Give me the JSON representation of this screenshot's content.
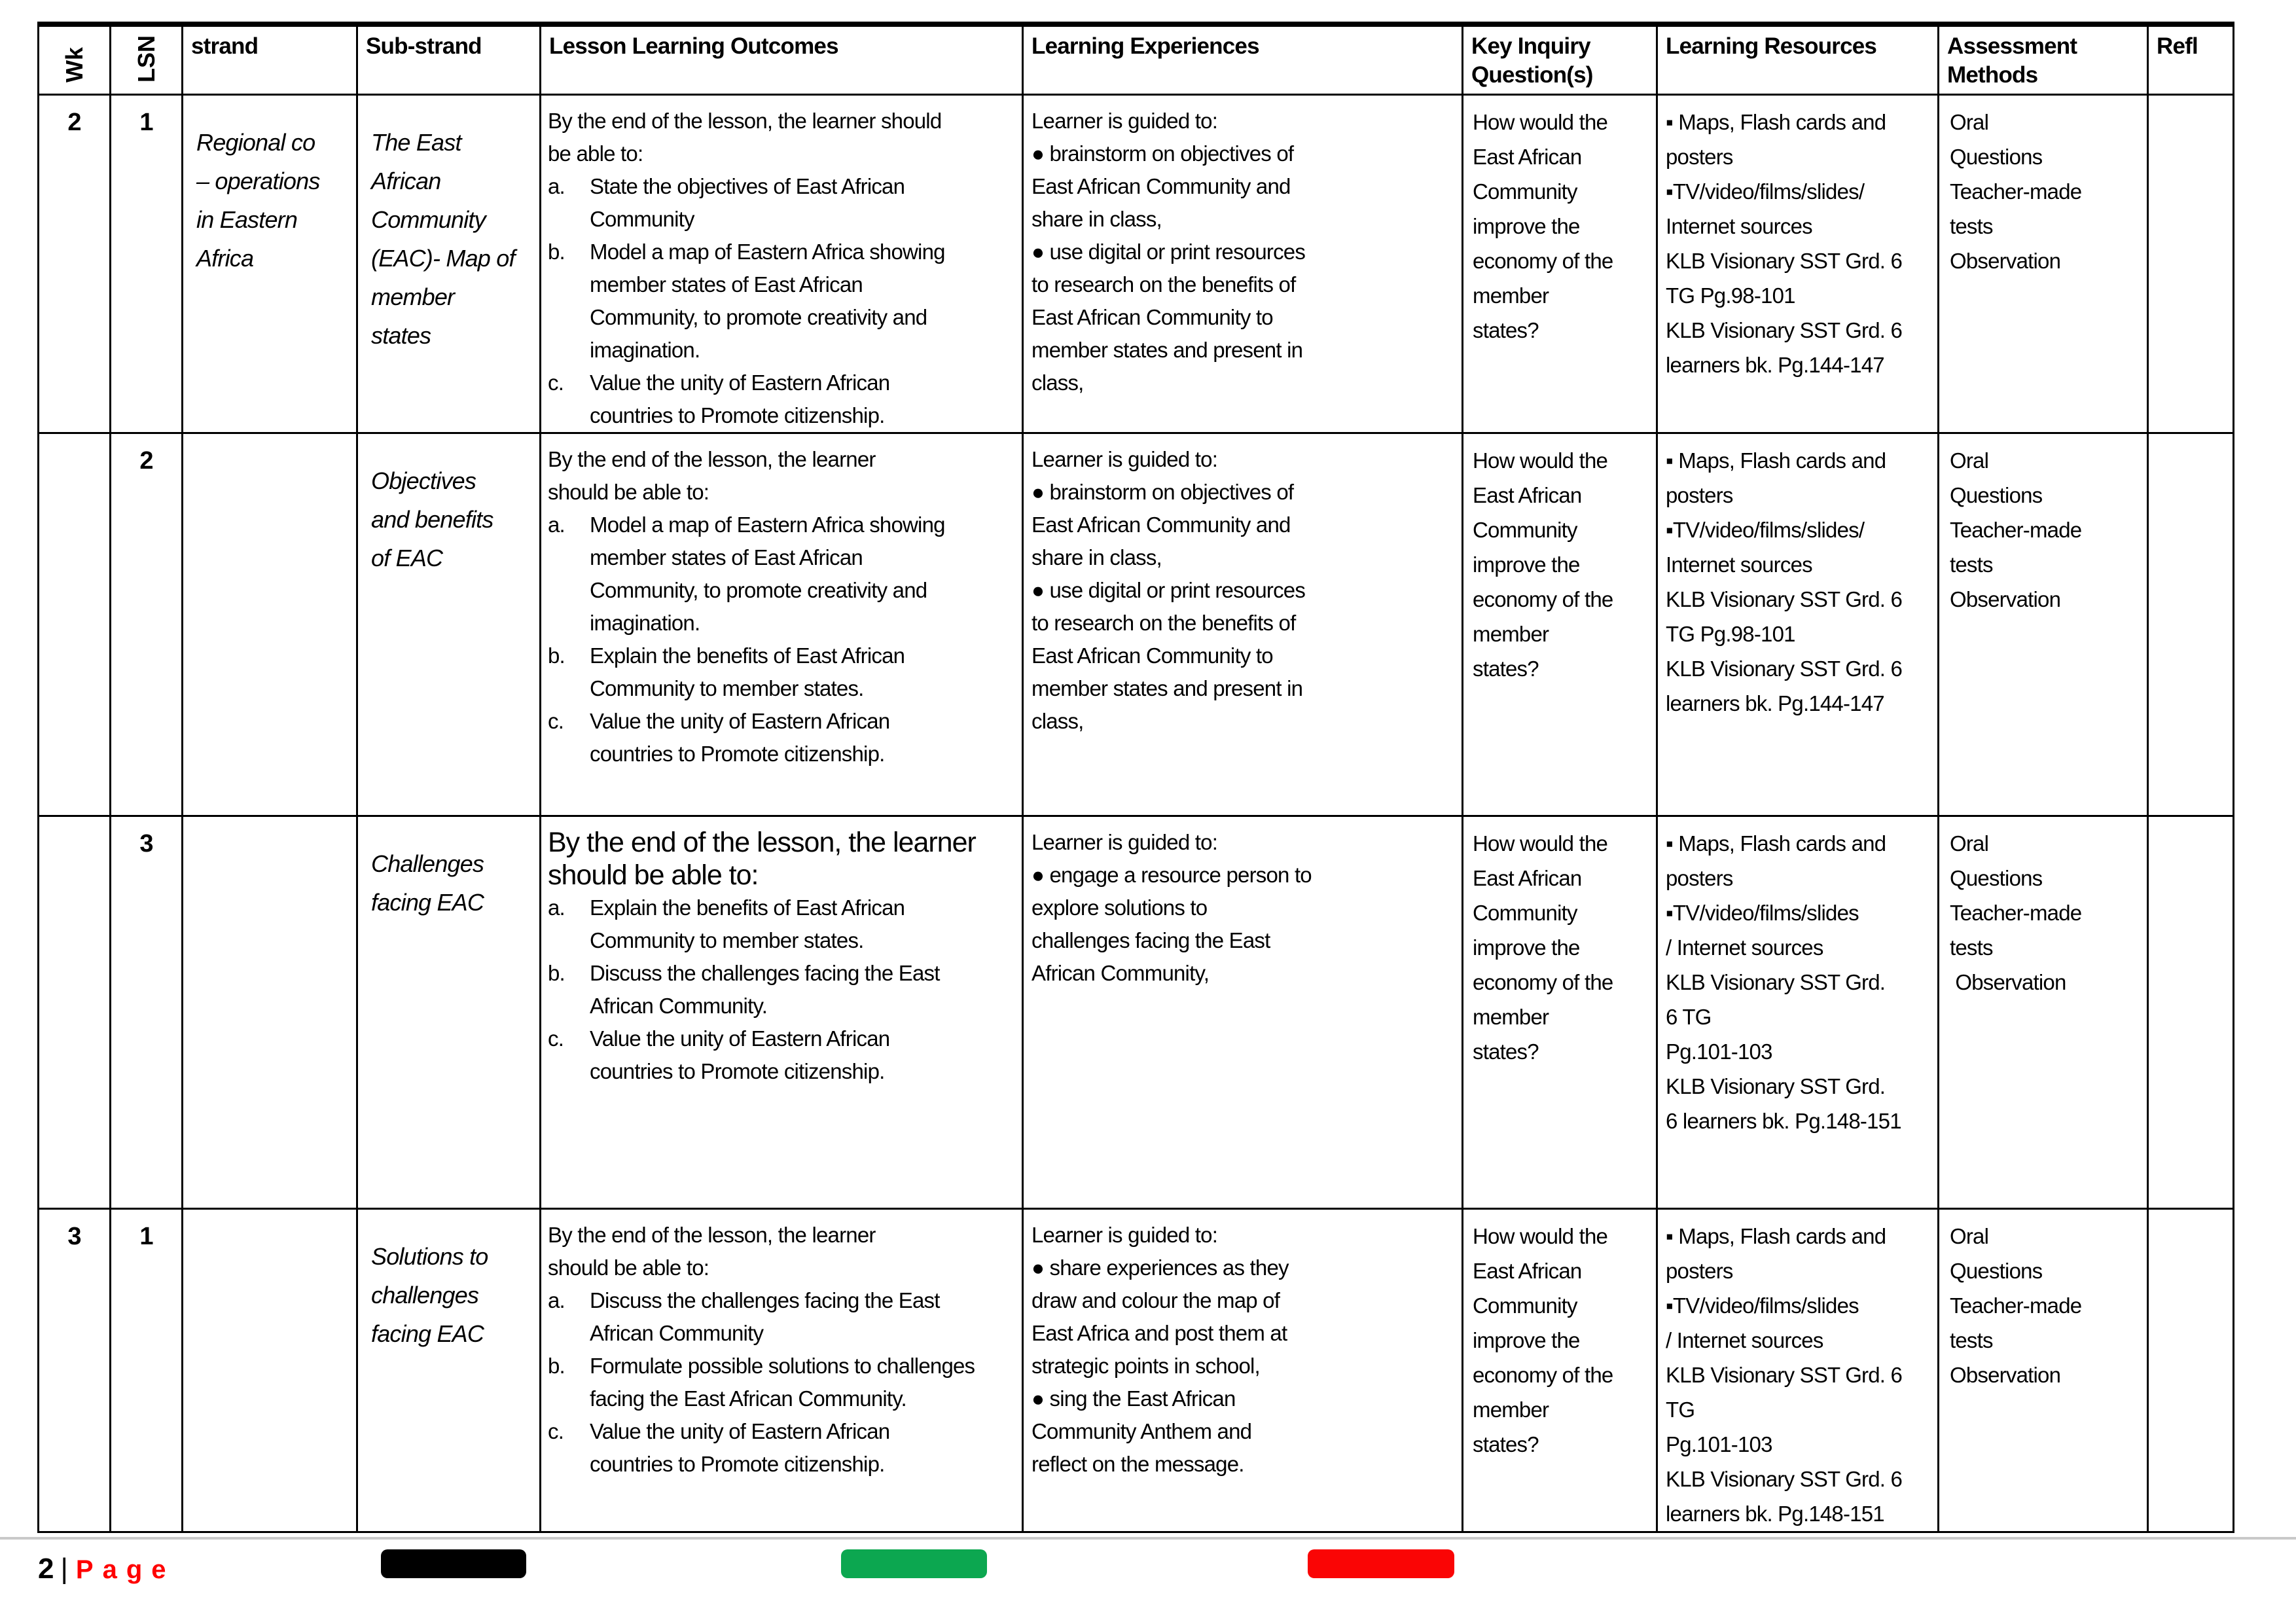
{
  "table": {
    "headers": {
      "wk": "Wk",
      "lsn": "LSN",
      "strand": "strand",
      "sub_strand": "Sub-strand",
      "outcomes": "Lesson Learning Outcomes",
      "experiences": "Learning Experiences",
      "inquiry": "Key Inquiry Question(s)",
      "resources": "Learning Resources",
      "assessment": "Assessment Methods",
      "refl": "Refl"
    },
    "rows": [
      {
        "wk": "2",
        "lsn": "1",
        "strand_lines": [
          "Regional co",
          "– operations",
          "in Eastern",
          "Africa"
        ],
        "sub_strand_lines": [
          "The East",
          "African",
          "Community",
          "(EAC)- Map of",
          "member",
          "states"
        ],
        "outcomes": {
          "intro_lines": [
            "By the end of the lesson, the learner should",
            "be able to:"
          ],
          "items": [
            {
              "label": "a.",
              "lines": [
                "State the objectives of East African",
                "Community"
              ]
            },
            {
              "label": "b.",
              "lines": [
                "Model a map of Eastern Africa showing",
                "member states of East African",
                "Community, to promote creativity and",
                "imagination."
              ]
            },
            {
              "label": "c.",
              "lines": [
                "Value the unity of Eastern African",
                "countries to Promote citizenship."
              ]
            }
          ]
        },
        "experience_lines": [
          "Learner is guided to:",
          "● brainstorm on objectives of",
          "East African Community and",
          "share in class,",
          "● use digital or print resources",
          "to research on the benefits of",
          "East African Community to",
          "member states and present in",
          "class,"
        ],
        "inquiry_lines": [
          "How would the",
          "East African",
          "Community",
          "improve the",
          "economy of the",
          "member",
          "states?"
        ],
        "resource_lines": [
          "▪ Maps, Flash cards and",
          "posters",
          "▪TV/video/films/slides/",
          "Internet sources",
          "KLB Visionary SST Grd. 6",
          "TG Pg.98-101",
          "KLB Visionary SST Grd. 6",
          "learners bk. Pg.144-147"
        ],
        "assessment_lines": [
          "Oral",
          "Questions",
          "Teacher-made",
          "tests",
          "Observation"
        ],
        "refl": ""
      },
      {
        "wk": "",
        "lsn": "2",
        "strand_lines": [],
        "sub_strand_lines": [
          "Objectives",
          "and benefits",
          "of EAC"
        ],
        "outcomes": {
          "intro_lines": [
            "By the end of the lesson, the learner",
            "should be able to:"
          ],
          "items": [
            {
              "label": "a.",
              "lines": [
                "Model a map of Eastern Africa showing",
                "member states of East African",
                "Community, to promote creativity and",
                "imagination."
              ]
            },
            {
              "label": "b.",
              "lines": [
                "Explain the benefits of East African",
                "Community to member states."
              ]
            },
            {
              "label": "c.",
              "lines": [
                "Value the unity of Eastern African",
                "countries to Promote citizenship."
              ]
            }
          ]
        },
        "experience_lines": [
          "Learner is guided to:",
          "● brainstorm on objectives of",
          "East African Community and",
          "share in class,",
          "● use digital or print resources",
          "to research on the benefits of",
          "East African Community to",
          "member states and present in",
          "class,"
        ],
        "inquiry_lines": [
          "How would the",
          "East African",
          "Community",
          "improve the",
          "economy of the",
          "member",
          "states?"
        ],
        "resource_lines": [
          "▪ Maps, Flash cards and",
          "posters",
          "▪TV/video/films/slides/",
          "Internet sources",
          "KLB Visionary SST Grd. 6",
          "TG Pg.98-101",
          "KLB Visionary SST Grd. 6",
          "learners bk. Pg.144-147"
        ],
        "assessment_lines": [
          "Oral",
          "Questions",
          "Teacher-made",
          "tests",
          "Observation"
        ],
        "refl": ""
      },
      {
        "wk": "",
        "lsn": "3",
        "strand_lines": [],
        "sub_strand_lines": [
          "Challenges",
          "facing EAC"
        ],
        "outcomes": {
          "intro_lines": [
            "By the end of the lesson, the learner",
            "should be able to:"
          ],
          "items": [
            {
              "label": "a.",
              "lines": [
                "Explain the benefits of East African",
                "Community to member states."
              ]
            },
            {
              "label": "b.",
              "lines": [
                "Discuss the challenges facing the East",
                "African Community."
              ]
            },
            {
              "label": "c.",
              "lines": [
                "Value the unity of Eastern African",
                "countries to Promote citizenship."
              ]
            }
          ]
        },
        "experience_lines": [
          "Learner is guided to:",
          "● engage a resource person to",
          "explore solutions to",
          "challenges facing the East",
          "African Community,"
        ],
        "inquiry_lines": [
          "How would the",
          "East African",
          "Community",
          "improve the",
          "economy of the",
          "member",
          "states?"
        ],
        "resource_lines": [
          "▪ Maps, Flash cards and",
          "posters",
          "▪TV/video/films/slides",
          "/ Internet sources",
          "KLB Visionary SST Grd.",
          "6 TG",
          "Pg.101-103",
          "KLB Visionary SST Grd.",
          "6 learners bk. Pg.148-151"
        ],
        "assessment_lines": [
          "Oral",
          "Questions",
          "Teacher-made",
          "tests",
          " Observation"
        ],
        "refl": ""
      },
      {
        "wk": "3",
        "lsn": "1",
        "strand_lines": [],
        "sub_strand_lines": [
          "Solutions to",
          "challenges",
          "facing EAC"
        ],
        "outcomes": {
          "intro_lines": [
            "By the end of the lesson, the learner",
            "should be able to:"
          ],
          "items": [
            {
              "label": "a.",
              "lines": [
                "Discuss the challenges facing the East",
                "African Community"
              ]
            },
            {
              "label": "b.",
              "lines": [
                "Formulate possible solutions to challenges",
                "facing the East African Community."
              ]
            },
            {
              "label": "c.",
              "lines": [
                "Value the unity of Eastern African",
                "countries to Promote citizenship."
              ]
            }
          ]
        },
        "experience_lines": [
          "Learner is guided to:",
          "● share experiences as they",
          "draw and colour the map of",
          "East Africa and post them at",
          "strategic points in school,",
          "● sing the East African",
          "Community Anthem and",
          "reflect on the message."
        ],
        "inquiry_lines": [
          "How would the",
          "East African",
          "Community",
          "improve the",
          "economy of the",
          "member",
          "states?"
        ],
        "resource_lines": [
          "▪ Maps, Flash cards and",
          "posters",
          "▪TV/video/films/slides",
          "/ Internet sources",
          "KLB Visionary SST Grd. 6 TG",
          "Pg.101-103",
          "KLB Visionary SST Grd. 6",
          "learners bk. Pg.148-151"
        ],
        "assessment_lines": [
          "Oral",
          "Questions",
          "Teacher-made",
          "tests",
          "Observation"
        ],
        "refl": ""
      }
    ]
  },
  "footer": {
    "page_number": "2",
    "separator": "|",
    "page_label": "Page"
  },
  "colors": {
    "bar_black": "#000000",
    "bar_green": "#0ca750",
    "bar_red": "#fa0505",
    "page_label_red": "#ff0000",
    "divider_gray": "#c9c9c9"
  }
}
